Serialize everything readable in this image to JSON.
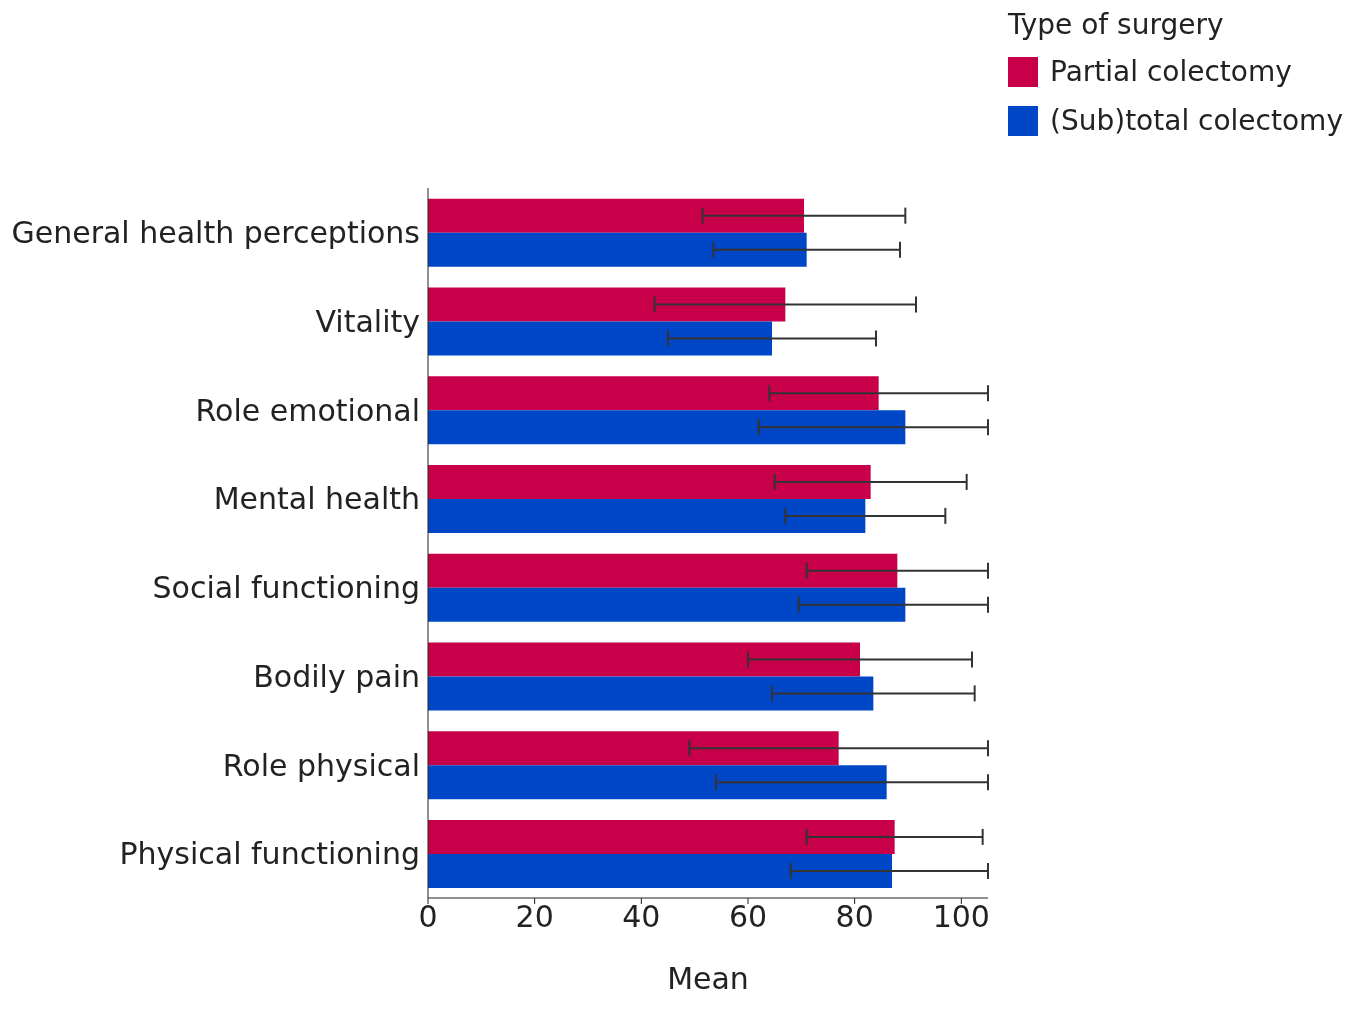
{
  "chart_data": {
    "type": "bar",
    "orientation": "horizontal",
    "xlabel": "Mean",
    "legend_title": "Type of surgery",
    "legend": "top right",
    "grid": false,
    "categories": [
      "General health perceptions",
      "Vitality",
      "Role emotional",
      "Mental health",
      "Social functioning",
      "Bodily pain",
      "Role physical",
      "Physical functioning"
    ],
    "xlim": [
      0,
      105
    ],
    "xticks": [
      0,
      20,
      40,
      60,
      80,
      100
    ],
    "series": [
      {
        "name": "Partial colectomy",
        "color": "#c8004a",
        "values": [
          70.5,
          67,
          84.5,
          83,
          88,
          81,
          77,
          87.5
        ],
        "errors": [
          19,
          24.5,
          [
            64,
            105
          ],
          18,
          [
            71,
            105
          ],
          21,
          [
            49,
            105
          ],
          16.5
        ]
      },
      {
        "name": "(Sub)total colectomy",
        "color": "#0047c8",
        "values": [
          71,
          64.5,
          89.5,
          82,
          89.5,
          83.5,
          86,
          87
        ],
        "errors": [
          17.5,
          19.5,
          [
            62,
            105
          ],
          15,
          [
            69.5,
            105
          ],
          19,
          [
            54,
            105
          ],
          [
            68,
            105
          ]
        ]
      }
    ]
  }
}
